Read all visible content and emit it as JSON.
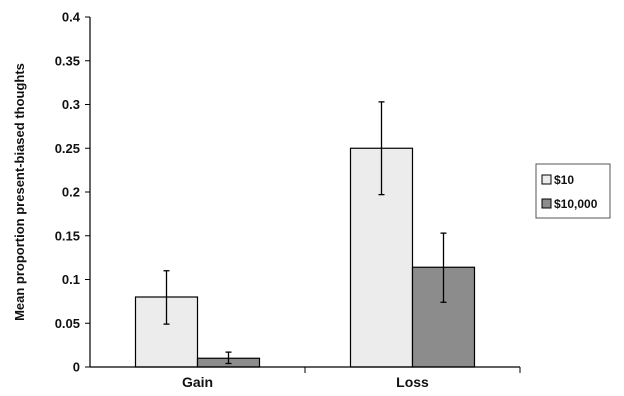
{
  "chart_data": {
    "type": "bar",
    "title": "",
    "xlabel": "",
    "ylabel": "Mean proportion present-biased thoughts",
    "categories": [
      "Gain",
      "Loss"
    ],
    "ylim": [
      0,
      0.4
    ],
    "yticks": [
      "0",
      "0.05",
      "0.1",
      "0.15",
      "0.2",
      "0.25",
      "0.3",
      "0.35",
      "0.4"
    ],
    "ytick_values": [
      0,
      0.05,
      0.1,
      0.15,
      0.2,
      0.25,
      0.3,
      0.35,
      0.4
    ],
    "grid": false,
    "legend_position": "right",
    "series": [
      {
        "name": "$10",
        "color": "#ececec",
        "values": [
          0.08,
          0.25
        ],
        "error_low": [
          0.049,
          0.197
        ],
        "error_high": [
          0.11,
          0.303
        ]
      },
      {
        "name": "$10,000",
        "color": "#8c8c8c",
        "values": [
          0.01,
          0.114
        ],
        "error_low": [
          0.004,
          0.074
        ],
        "error_high": [
          0.017,
          0.153
        ]
      }
    ]
  }
}
